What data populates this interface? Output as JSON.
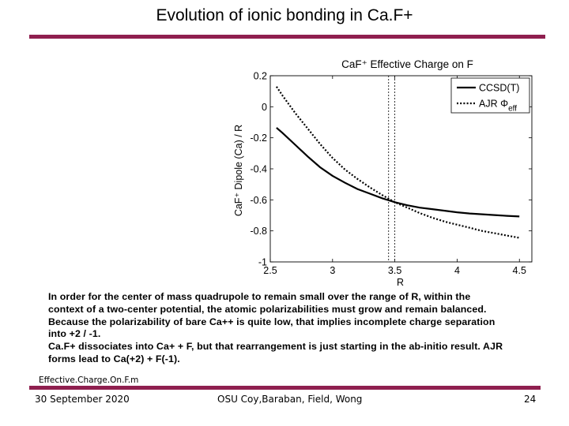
{
  "slide": {
    "title": "Evolution of ionic bonding in Ca.F+",
    "accent_color": "#8f1f4f"
  },
  "body": {
    "lines": [
      "In order for the center of mass quadrupole to remain small over the range of R, within the",
      "context of a two-center potential, the atomic polarizabilities must grow and remain balanced.",
      "Because the polarizability of bare Ca++ is quite low, that implies incomplete charge separation",
      "into +2 / -1.",
      "Ca.F+ dissociates into Ca+ + F, but that rearrangement is just starting in the ab-initio result. AJR",
      "forms lead to Ca(+2) + F(-1)."
    ]
  },
  "filename": "Effective.Charge.On.F.m",
  "footer": {
    "date": "30 September 2020",
    "authors": "OSU Coy,Baraban, Field, Wong",
    "page": "24"
  },
  "chart_data": {
    "type": "line",
    "title": "CaF⁺ Effective Charge on F",
    "xlabel": "R",
    "ylabel": "CaF⁺ Dipole (Ca) / R",
    "xlim": [
      2.5,
      4.6
    ],
    "ylim": [
      -1,
      0.2
    ],
    "xticks": [
      "2.5",
      "3",
      "3.5",
      "4",
      "4.5"
    ],
    "yticks": [
      "0.2",
      "0",
      "-0.2",
      "-0.4",
      "-0.6",
      "-0.8",
      "-1"
    ],
    "xtick_values": [
      2.5,
      3,
      3.5,
      4,
      4.5
    ],
    "ytick_values": [
      0.2,
      0,
      -0.2,
      -0.4,
      -0.6,
      -0.8,
      -1
    ],
    "vlines": [
      3.45,
      3.5
    ],
    "legend_position": "top-right",
    "grid": false,
    "series": [
      {
        "name": "CCSD(T)",
        "style": "solid",
        "x": [
          2.55,
          2.6,
          2.7,
          2.8,
          2.9,
          3.0,
          3.1,
          3.2,
          3.3,
          3.4,
          3.5,
          3.6,
          3.7,
          3.8,
          3.9,
          4.0,
          4.1,
          4.2,
          4.3,
          4.4,
          4.5
        ],
        "y": [
          -0.135,
          -0.17,
          -0.245,
          -0.32,
          -0.39,
          -0.445,
          -0.49,
          -0.53,
          -0.56,
          -0.59,
          -0.615,
          -0.635,
          -0.65,
          -0.66,
          -0.67,
          -0.68,
          -0.688,
          -0.693,
          -0.698,
          -0.703,
          -0.707
        ]
      },
      {
        "name": "AJR Φ",
        "name_sub": "eff",
        "style": "dotted",
        "x": [
          2.55,
          2.6,
          2.7,
          2.8,
          2.9,
          3.0,
          3.1,
          3.2,
          3.3,
          3.4,
          3.5,
          3.6,
          3.7,
          3.8,
          3.9,
          4.0,
          4.1,
          4.2,
          4.3,
          4.4,
          4.5
        ],
        "y": [
          0.13,
          0.07,
          -0.04,
          -0.14,
          -0.24,
          -0.33,
          -0.405,
          -0.465,
          -0.52,
          -0.57,
          -0.615,
          -0.65,
          -0.685,
          -0.715,
          -0.74,
          -0.76,
          -0.78,
          -0.8,
          -0.815,
          -0.83,
          -0.845
        ]
      }
    ]
  }
}
